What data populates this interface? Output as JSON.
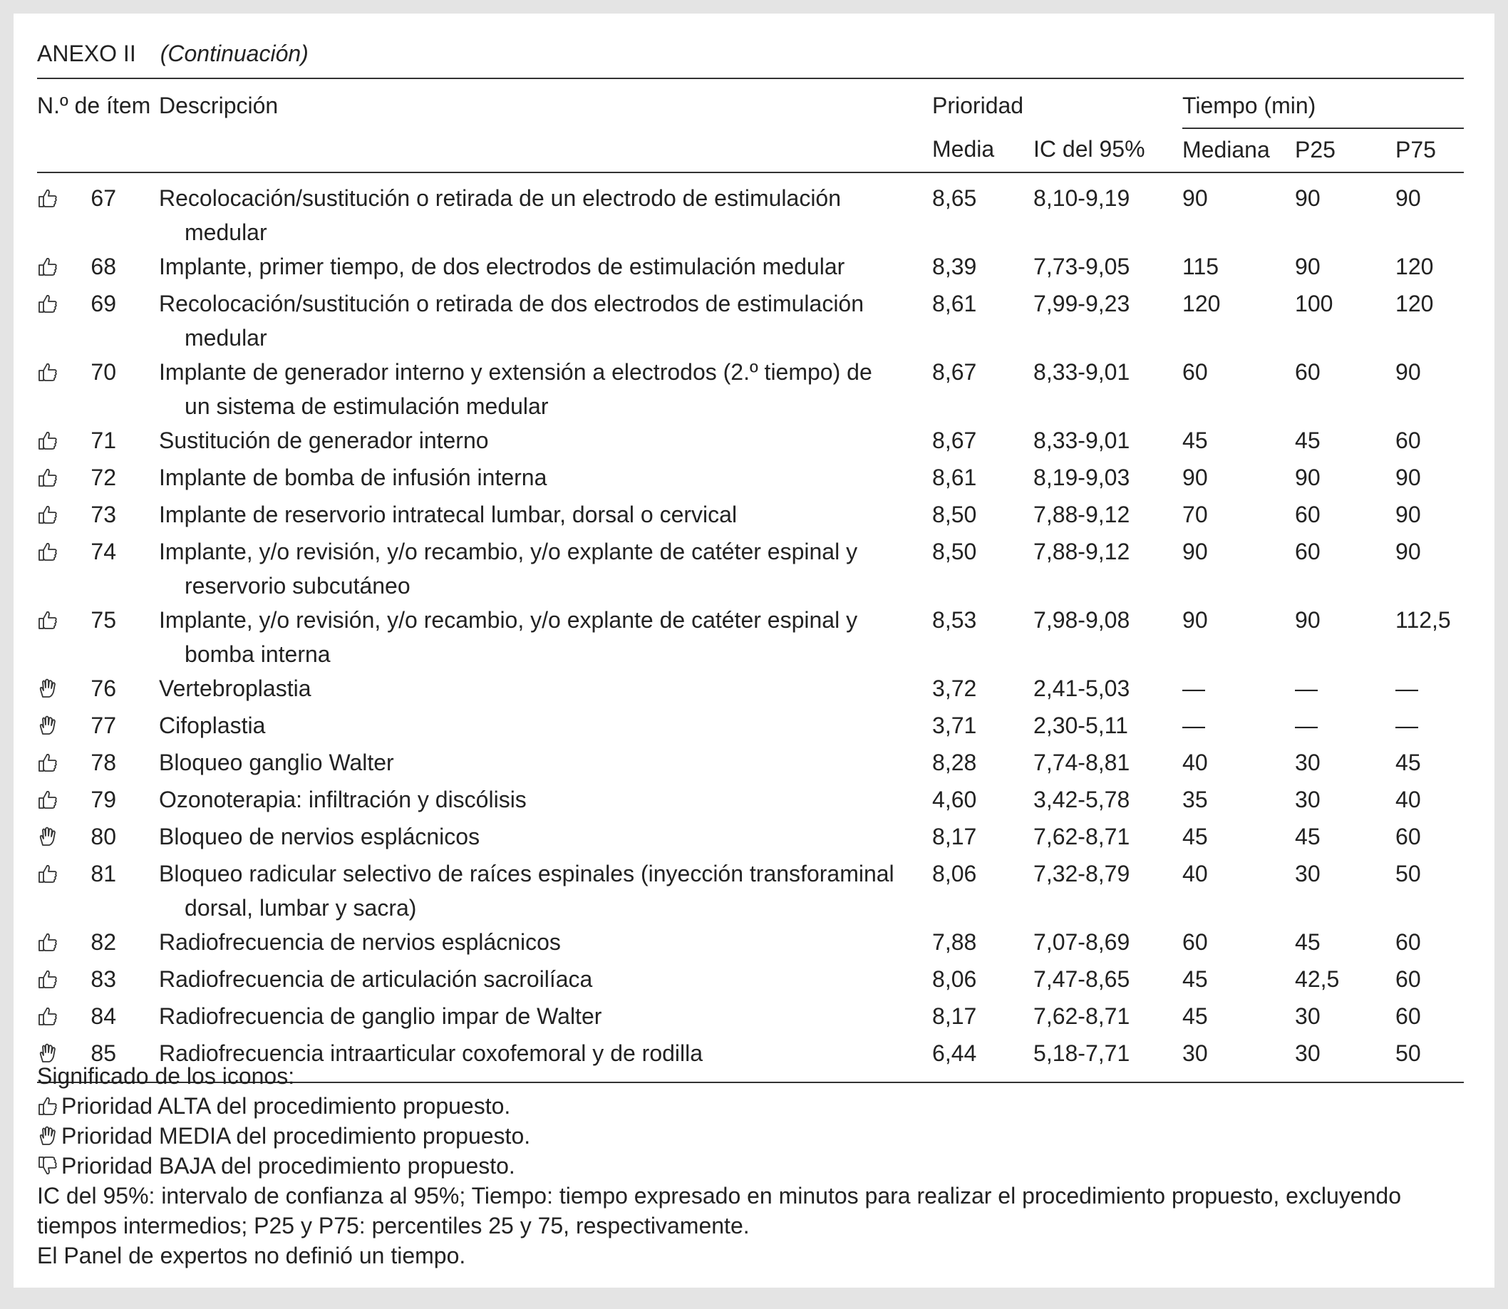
{
  "header": {
    "label": "ANEXO II",
    "subtitle": "(Continuación)"
  },
  "table": {
    "columns": {
      "item": "N.º de ítem",
      "description": "Descripción",
      "priority": "Prioridad",
      "time": "Tiempo (min)",
      "mean": "Media",
      "ci": "IC del 95%",
      "median": "Mediana",
      "p25": "P25",
      "p75": "P75"
    },
    "rows": [
      [
        "67",
        "Recolocación/sustitución o retirada de un electrodo de estimulación medular",
        "8,65",
        "8,10-9,19",
        "90",
        "90",
        "90"
      ],
      [
        "68",
        "Implante, primer tiempo, de dos electrodos de estimulación medular",
        "8,39",
        "7,73-9,05",
        "115",
        "90",
        "120"
      ],
      [
        "69",
        "Recolocación/sustitución o retirada de dos electrodos de estimulación medular",
        "8,61",
        "7,99-9,23",
        "120",
        "100",
        "120"
      ],
      [
        "70",
        "Implante de generador interno y extensión a electrodos (2.º tiempo) de un sistema de estimulación medular",
        "8,67",
        "8,33-9,01",
        "60",
        "60",
        "90"
      ],
      [
        "71",
        "Sustitución de generador interno",
        "8,67",
        "8,33-9,01",
        "45",
        "45",
        "60"
      ],
      [
        "72",
        "Implante de bomba de infusión interna",
        "8,61",
        "8,19-9,03",
        "90",
        "90",
        "90"
      ],
      [
        "73",
        "Implante de reservorio intratecal lumbar, dorsal o cervical",
        "8,50",
        "7,88-9,12",
        "70",
        "60",
        "90"
      ],
      [
        "74",
        "Implante, y/o revisión, y/o recambio, y/o explante de catéter espinal y reservorio subcutáneo",
        "8,50",
        "7,88-9,12",
        "90",
        "60",
        "90"
      ],
      [
        "75",
        "Implante, y/o revisión, y/o recambio, y/o explante de catéter espinal y bomba interna",
        "8,53",
        "7,98-9,08",
        "90",
        "90",
        "112,5"
      ],
      [
        "76",
        "Vertebroplastia",
        "3,72",
        "2,41-5,03",
        "—",
        "—",
        "—"
      ],
      [
        "77",
        "Cifoplastia",
        "3,71",
        "2,30-5,11",
        "—",
        "—",
        "—"
      ],
      [
        "78",
        "Bloqueo ganglio Walter",
        "8,28",
        "7,74-8,81",
        "40",
        "30",
        "45"
      ],
      [
        "79",
        "Ozonoterapia: infiltración y discólisis",
        "4,60",
        "3,42-5,78",
        "35",
        "30",
        "40"
      ],
      [
        "80",
        "Bloqueo de nervios esplácnicos",
        "8,17",
        "7,62-8,71",
        "45",
        "45",
        "60"
      ],
      [
        "81",
        "Bloqueo radicular selectivo de raíces espinales (inyección transforaminal dorsal, lumbar y sacra)",
        "8,06",
        "7,32-8,79",
        "40",
        "30",
        "50"
      ],
      [
        "82",
        "Radiofrecuencia de nervios esplácnicos",
        "7,88",
        "7,07-8,69",
        "60",
        "45",
        "60"
      ],
      [
        "83",
        "Radiofrecuencia de articulación sacroilíaca",
        "8,06",
        "7,47-8,65",
        "45",
        "42,5",
        "60"
      ],
      [
        "84",
        "Radiofrecuencia de ganglio impar de Walter",
        "8,17",
        "7,62-8,71",
        "45",
        "30",
        "60"
      ],
      [
        "85",
        "Radiofrecuencia intraarticular coxofemoral y de rodilla",
        "6,44",
        "5,18-7,71",
        "30",
        "30",
        "50"
      ]
    ]
  },
  "legend": {
    "title": "Significado de los iconos:",
    "items": [
      "Prioridad ALTA del procedimiento propuesto.",
      "Prioridad MEDIA del procedimiento propuesto.",
      "Prioridad BAJA del procedimiento propuesto."
    ]
  },
  "notes": [
    "IC del 95%: intervalo de confianza al 95%; Tiempo: tiempo expresado en minutos para realizar el procedimiento propuesto, excluyendo tiempos intermedios; P25 y P75: percentiles 25 y 75, respectivamente.",
    "El Panel de expertos no definió un tiempo."
  ]
}
